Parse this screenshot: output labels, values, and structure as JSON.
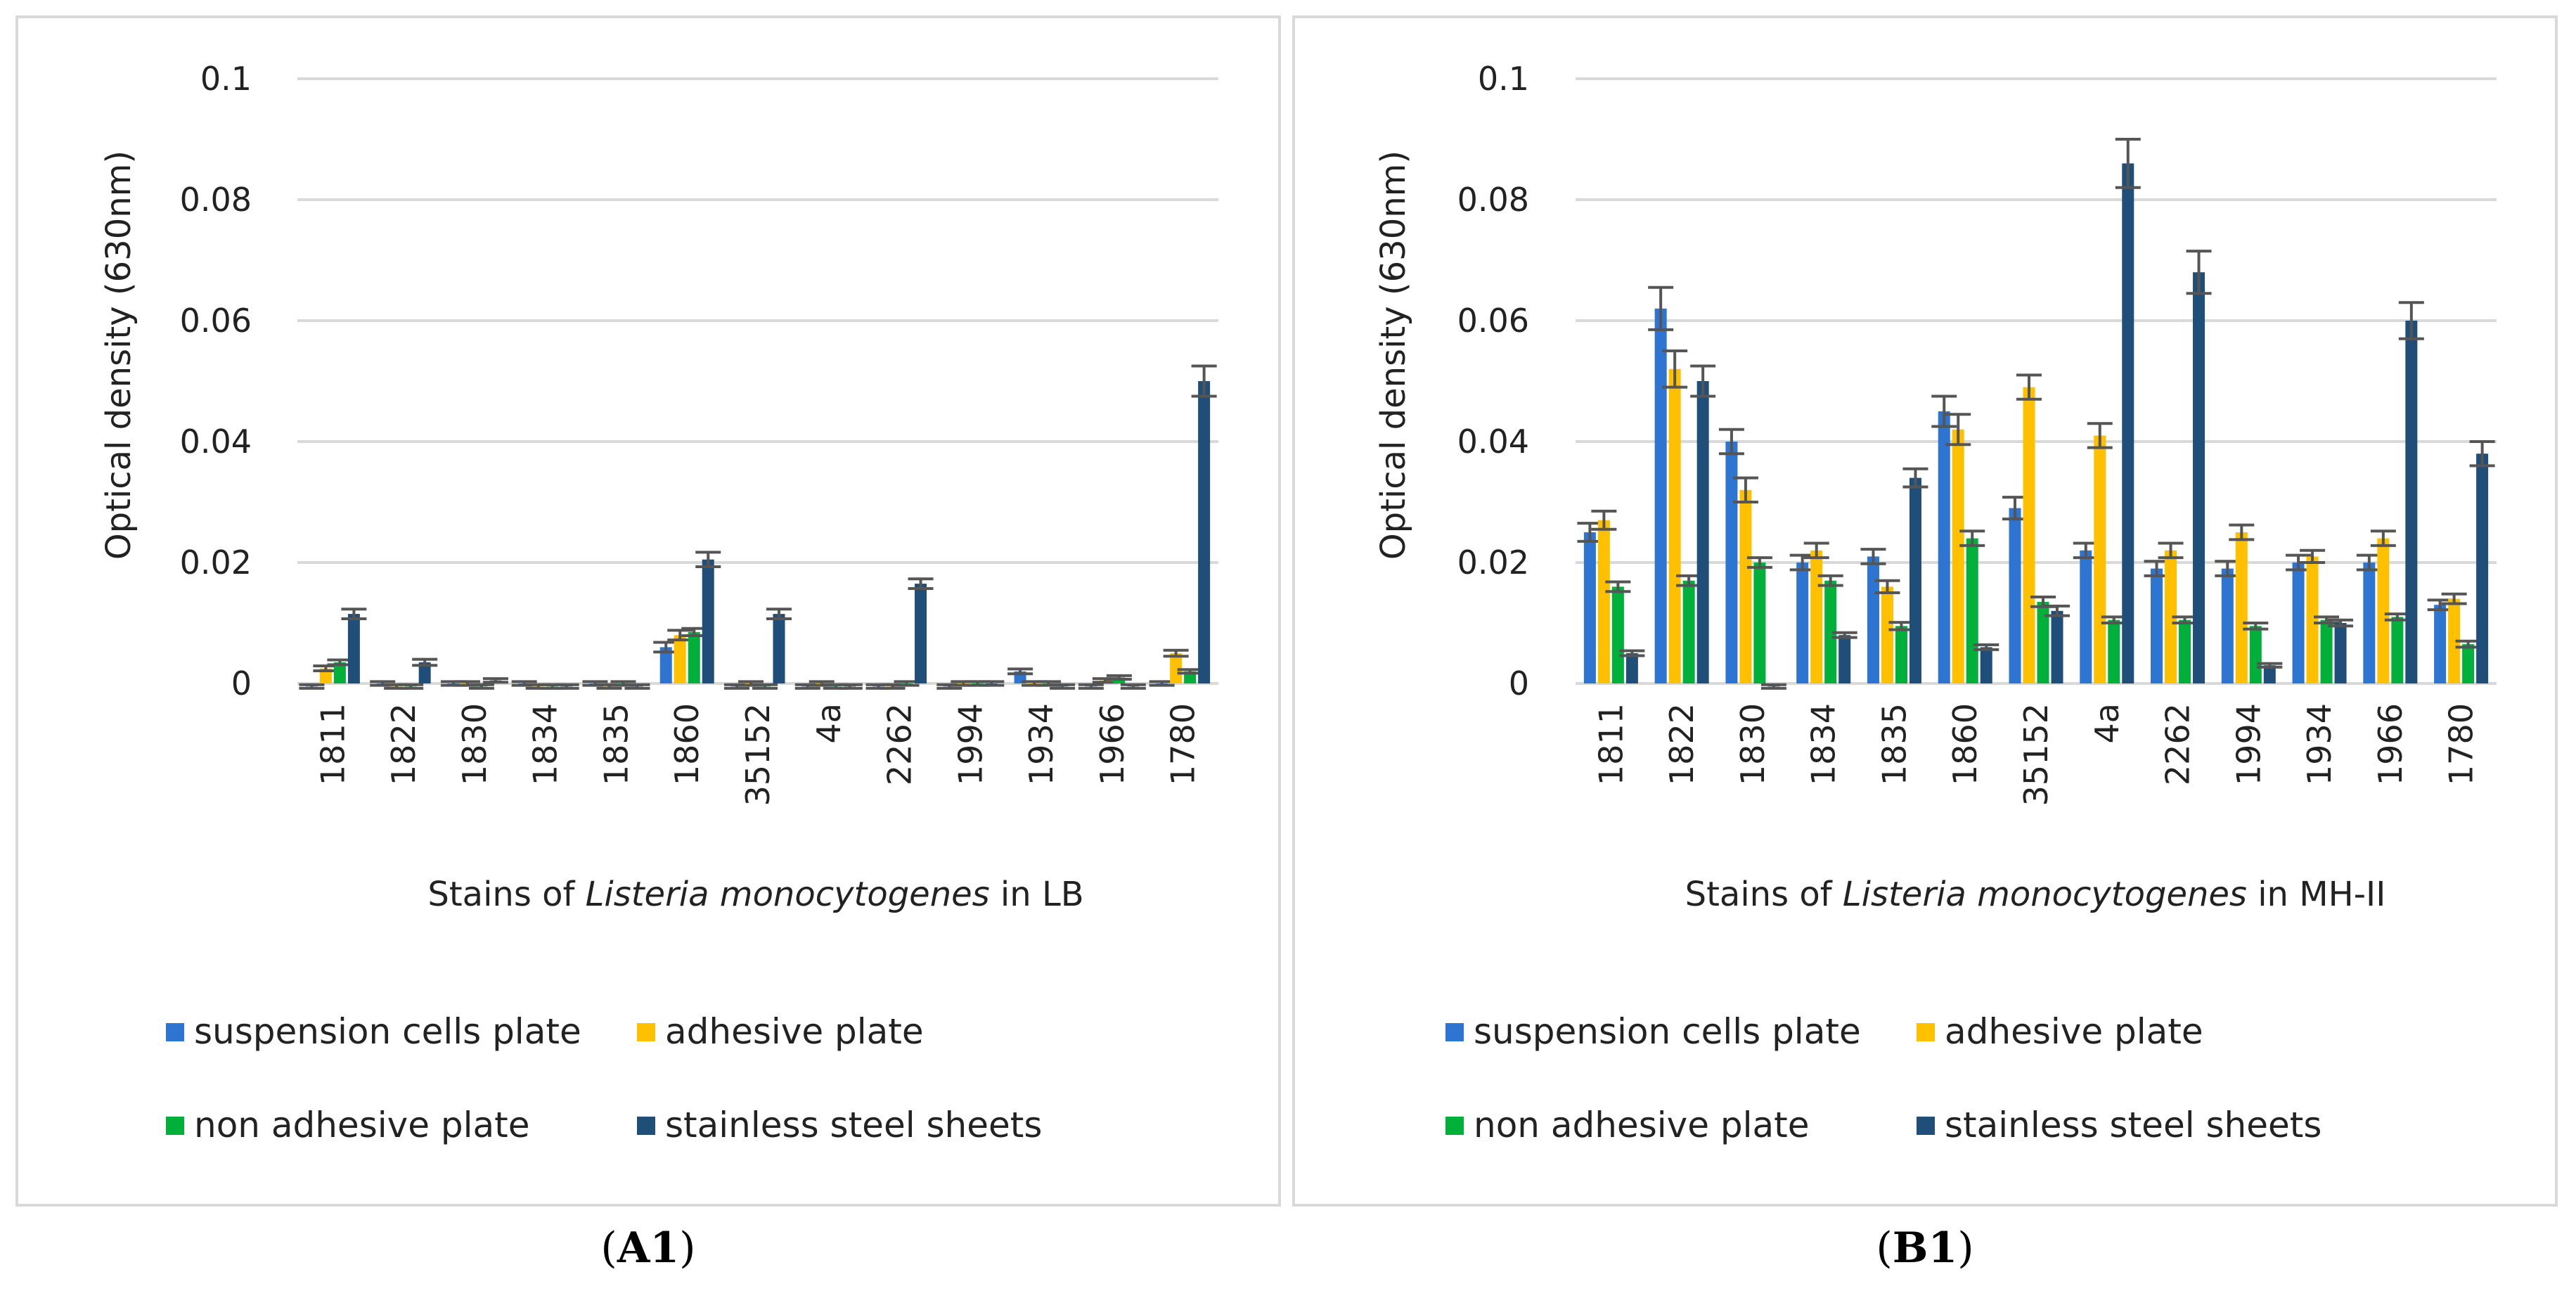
{
  "chart_data": [
    {
      "type": "bar",
      "panel_label": "A1",
      "xlabel_prefix": "Stains of ",
      "xlabel_italic": "Listeria monocytogenes",
      "xlabel_suffix": " in LB",
      "ylabel": "Optical density (630nm)",
      "ylim": [
        0,
        0.1
      ],
      "yticks": [
        "0",
        "0.02",
        "0.04",
        "0.06",
        "0.08",
        "0.1"
      ],
      "grid": true,
      "legend_position": "bottom",
      "categories": [
        "1811",
        "1822",
        "1830",
        "1834",
        "1835",
        "1860",
        "35152",
        "4a",
        "2262",
        "1994",
        "1934",
        "1966",
        "1780"
      ],
      "series": [
        {
          "name": "suspension cells plate",
          "color": "#2E75D1",
          "values": [
            -0.0005,
            0.0,
            0.0,
            0.0,
            0.0,
            0.006,
            -0.0005,
            -0.0005,
            -0.0005,
            -0.0005,
            0.002,
            -0.0005,
            0.0
          ],
          "errors": [
            0.0003,
            0.0003,
            0.0003,
            0.0003,
            0.0003,
            0.0008,
            0.0003,
            0.0003,
            0.0003,
            0.0003,
            0.0004,
            0.0003,
            0.0003
          ]
        },
        {
          "name": "adhesive plate",
          "color": "#FFC000",
          "values": [
            0.0025,
            -0.0005,
            0.0,
            -0.0005,
            -0.0005,
            0.008,
            0.0,
            0.0,
            -0.0005,
            0.0,
            0.0,
            0.0005,
            0.005
          ],
          "errors": [
            0.0004,
            0.0003,
            0.0003,
            0.0003,
            0.0003,
            0.0008,
            0.0003,
            0.0003,
            0.0003,
            0.0003,
            0.0003,
            0.0003,
            0.0005
          ]
        },
        {
          "name": "non adhesive plate",
          "color": "#00B03A",
          "values": [
            0.0035,
            -0.0005,
            -0.0005,
            -0.0005,
            0.0,
            0.0085,
            -0.0005,
            -0.0005,
            0.0,
            0.0,
            0.0,
            0.001,
            0.002
          ],
          "errors": [
            0.0004,
            0.0003,
            0.0003,
            0.0003,
            0.0003,
            0.0006,
            0.0003,
            0.0003,
            0.0003,
            0.0003,
            0.0003,
            0.0003,
            0.0003
          ]
        },
        {
          "name": "stainless steel sheets",
          "color": "#1F4E79",
          "values": [
            0.0115,
            0.0035,
            0.0005,
            -0.0005,
            -0.0005,
            0.0205,
            0.0115,
            -0.0005,
            0.0165,
            0.0,
            -0.0005,
            -0.0005,
            0.05
          ],
          "errors": [
            0.0008,
            0.0005,
            0.0003,
            0.0003,
            0.0003,
            0.0012,
            0.0008,
            0.0003,
            0.0008,
            0.0003,
            0.0003,
            0.0003,
            0.0025
          ]
        }
      ]
    },
    {
      "type": "bar",
      "panel_label": "B1",
      "xlabel_prefix": "Stains of ",
      "xlabel_italic": "Listeria monocytogenes",
      "xlabel_suffix": " in MH-II",
      "ylabel": "Optical density (630nm)",
      "ylim": [
        0,
        0.1
      ],
      "yticks": [
        "0",
        "0.02",
        "0.04",
        "0.06",
        "0.08",
        "0.1"
      ],
      "grid": true,
      "legend_position": "bottom",
      "categories": [
        "1811",
        "1822",
        "1830",
        "1834",
        "1835",
        "1860",
        "35152",
        "4a",
        "2262",
        "1994",
        "1934",
        "1966",
        "1780"
      ],
      "series": [
        {
          "name": "suspension cells plate",
          "color": "#2E75D1",
          "values": [
            0.025,
            0.062,
            0.04,
            0.02,
            0.021,
            0.045,
            0.029,
            0.022,
            0.019,
            0.019,
            0.02,
            0.02,
            0.013
          ],
          "errors": [
            0.0015,
            0.0035,
            0.002,
            0.0012,
            0.0012,
            0.0025,
            0.0018,
            0.0012,
            0.0012,
            0.0012,
            0.0012,
            0.0012,
            0.0008
          ]
        },
        {
          "name": "adhesive plate",
          "color": "#FFC000",
          "values": [
            0.027,
            0.052,
            0.032,
            0.022,
            0.016,
            0.042,
            0.049,
            0.041,
            0.022,
            0.025,
            0.021,
            0.024,
            0.014
          ],
          "errors": [
            0.0015,
            0.003,
            0.002,
            0.0012,
            0.001,
            0.0025,
            0.002,
            0.002,
            0.0012,
            0.0012,
            0.001,
            0.0012,
            0.0008
          ]
        },
        {
          "name": "non adhesive plate",
          "color": "#00B03A",
          "values": [
            0.016,
            0.017,
            0.02,
            0.017,
            0.0095,
            0.024,
            0.0135,
            0.0105,
            0.0105,
            0.0095,
            0.0105,
            0.011,
            0.0065
          ],
          "errors": [
            0.0008,
            0.0008,
            0.0008,
            0.0008,
            0.0006,
            0.0012,
            0.0008,
            0.0005,
            0.0005,
            0.0005,
            0.0005,
            0.0005,
            0.0005
          ]
        },
        {
          "name": "stainless steel sheets",
          "color": "#1F4E79",
          "values": [
            0.005,
            0.05,
            -0.0005,
            0.008,
            0.034,
            0.006,
            0.012,
            0.086,
            0.068,
            0.003,
            0.01,
            0.06,
            0.038
          ],
          "errors": [
            0.0004,
            0.0025,
            0.0003,
            0.0004,
            0.0015,
            0.0004,
            0.0008,
            0.004,
            0.0035,
            0.0003,
            0.0005,
            0.003,
            0.002
          ]
        }
      ]
    }
  ]
}
